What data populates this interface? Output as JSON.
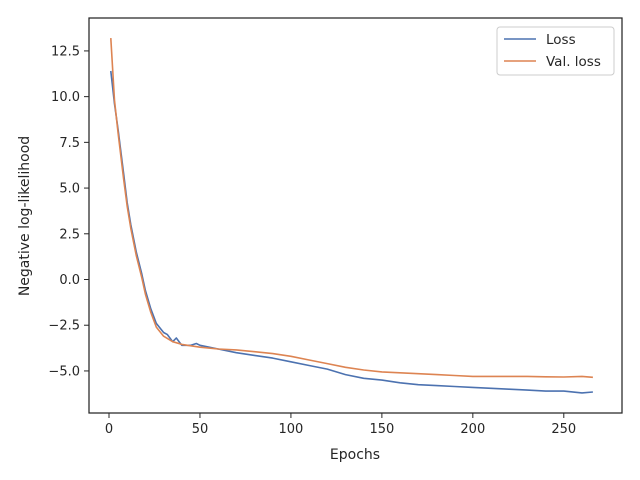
{
  "chart_data": {
    "type": "line",
    "title": "",
    "xlabel": "Epochs",
    "ylabel": "Negative log-likelihood",
    "xlim": [
      -11,
      282
    ],
    "ylim": [
      -7.3,
      14.3
    ],
    "xticks": [
      0,
      50,
      100,
      150,
      200,
      250
    ],
    "xtick_labels": [
      "0",
      "50",
      "100",
      "150",
      "200",
      "250"
    ],
    "yticks": [
      -5.0,
      -2.5,
      0.0,
      2.5,
      5.0,
      7.5,
      10.0,
      12.5
    ],
    "ytick_labels": [
      "−5.0",
      "−2.5",
      "0.0",
      "2.5",
      "5.0",
      "7.5",
      "10.0",
      "12.5"
    ],
    "grid": false,
    "legend_position": "top-right",
    "series": [
      {
        "name": "Loss",
        "color": "#4c72b0",
        "x": [
          1,
          3,
          5,
          8,
          10,
          12,
          15,
          18,
          20,
          23,
          26,
          30,
          32,
          35,
          37,
          40,
          45,
          48,
          50,
          55,
          60,
          70,
          80,
          90,
          100,
          110,
          120,
          130,
          140,
          150,
          160,
          170,
          180,
          190,
          200,
          210,
          220,
          230,
          240,
          250,
          260,
          266
        ],
        "values": [
          11.4,
          9.6,
          8.2,
          5.8,
          4.2,
          3.0,
          1.5,
          0.3,
          -0.6,
          -1.6,
          -2.4,
          -2.9,
          -3.0,
          -3.4,
          -3.2,
          -3.6,
          -3.6,
          -3.5,
          -3.6,
          -3.7,
          -3.8,
          -4.0,
          -4.15,
          -4.3,
          -4.5,
          -4.7,
          -4.9,
          -5.2,
          -5.4,
          -5.5,
          -5.65,
          -5.75,
          -5.8,
          -5.85,
          -5.9,
          -5.95,
          -6.0,
          -6.05,
          -6.1,
          -6.1,
          -6.2,
          -6.15
        ]
      },
      {
        "name": "Val. loss",
        "color": "#dd8452",
        "x": [
          1,
          3,
          5,
          8,
          10,
          12,
          15,
          18,
          20,
          23,
          26,
          30,
          35,
          40,
          50,
          60,
          70,
          80,
          90,
          100,
          110,
          120,
          130,
          140,
          150,
          160,
          170,
          180,
          190,
          200,
          210,
          220,
          230,
          240,
          250,
          260,
          266
        ],
        "values": [
          13.2,
          9.8,
          8.0,
          5.5,
          4.0,
          2.8,
          1.3,
          0.1,
          -0.8,
          -1.8,
          -2.6,
          -3.1,
          -3.4,
          -3.55,
          -3.7,
          -3.8,
          -3.85,
          -3.95,
          -4.05,
          -4.2,
          -4.4,
          -4.6,
          -4.8,
          -4.95,
          -5.05,
          -5.1,
          -5.15,
          -5.2,
          -5.25,
          -5.3,
          -5.3,
          -5.3,
          -5.3,
          -5.32,
          -5.33,
          -5.3,
          -5.35
        ]
      }
    ]
  }
}
